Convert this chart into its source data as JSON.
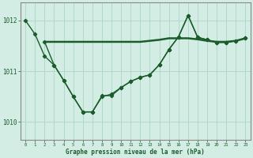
{
  "xlabel": "Graphe pression niveau de la mer (hPa)",
  "bg_color": "#d4ede4",
  "grid_color": "#b0d9c8",
  "line_color": "#1a5c2a",
  "ylim": [
    1009.65,
    1012.35
  ],
  "xlim": [
    -0.5,
    23.5
  ],
  "ytick_vals": [
    1010,
    1011,
    1012
  ],
  "x_ticks": [
    0,
    1,
    2,
    3,
    4,
    5,
    6,
    7,
    8,
    9,
    10,
    11,
    12,
    13,
    14,
    15,
    16,
    17,
    18,
    19,
    20,
    21,
    22,
    23
  ],
  "line1_x": [
    2,
    3,
    4,
    5,
    6,
    7,
    8,
    9,
    10,
    11,
    12,
    13,
    14,
    15,
    16,
    17,
    18,
    19,
    20,
    21,
    22,
    23
  ],
  "line1_y": [
    1011.58,
    1011.58,
    1011.58,
    1011.58,
    1011.58,
    1011.58,
    1011.58,
    1011.58,
    1011.58,
    1011.58,
    1011.58,
    1011.6,
    1011.62,
    1011.65,
    1011.65,
    1011.65,
    1011.63,
    1011.6,
    1011.58,
    1011.58,
    1011.6,
    1011.65
  ],
  "line2_x": [
    0,
    1,
    2,
    3,
    4,
    5,
    6,
    7,
    8,
    9,
    10,
    11,
    12,
    13,
    14,
    15,
    16,
    17,
    18,
    19,
    20,
    21,
    22,
    23
  ],
  "line2_y": [
    1012.0,
    1011.73,
    1011.3,
    1011.12,
    1010.82,
    1010.5,
    1010.2,
    1010.2,
    1010.5,
    1010.55,
    1010.68,
    1010.8,
    1010.88,
    1010.93,
    1011.13,
    1011.43,
    1011.68,
    1012.1,
    1011.67,
    1011.62,
    1011.57,
    1011.57,
    1011.6,
    1011.65
  ],
  "line3_x": [
    2,
    3,
    4,
    5,
    6,
    7,
    8,
    9,
    10,
    11,
    12,
    13,
    14,
    15,
    16,
    17,
    18,
    19,
    20,
    21,
    22,
    23
  ],
  "line3_y": [
    1011.58,
    1011.12,
    1010.82,
    1010.5,
    1010.2,
    1010.2,
    1010.52,
    1010.52,
    1010.68,
    1010.8,
    1010.88,
    1010.93,
    1011.13,
    1011.43,
    1011.68,
    1012.1,
    1011.67,
    1011.62,
    1011.57,
    1011.57,
    1011.6,
    1011.65
  ]
}
